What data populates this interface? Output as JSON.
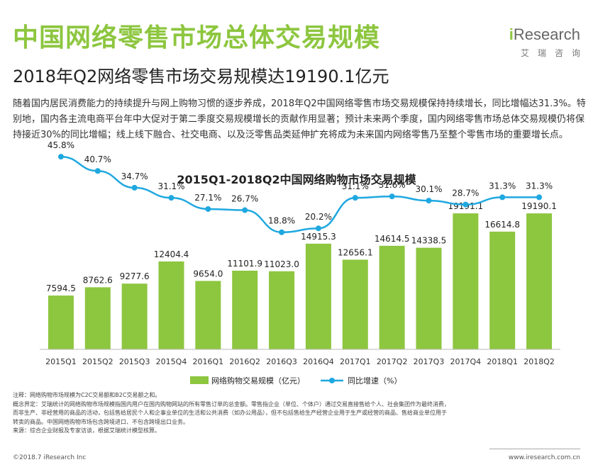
{
  "header": {
    "title": "中国网络零售市场总体交易规模",
    "subtitle": "2018年Q2网络零售市场交易规模达19190.1亿元",
    "brand_logo_i": "i",
    "brand_logo_rest": "Research",
    "brand_cn": "艾瑞咨询"
  },
  "summary": "随着国内居民消费能力的持续提升与网上购物习惯的逐步养成，2018年Q2中国网络零售市场交易规模保持持续增长，同比增幅达31.3%。特别地，国内各主流电商平台年中大促对于第二季度交易规模增长的贡献作用显著；预计未来两个季度，国内网络零售市场总体交易规模仍将保持接近30%的同比增幅；线上线下融合、社交电商、以及泛零售品类延伸扩充将成为未来国内网络零售乃至整个零售市场的重要增长点。",
  "chart_data": {
    "type": "bar",
    "title": "2015Q1-2018Q2中国网络购物市场交易规模",
    "categories": [
      "2015Q1",
      "2015Q2",
      "2015Q3",
      "2015Q4",
      "2016Q1",
      "2016Q2",
      "2016Q3",
      "2016Q4",
      "2017Q1",
      "2017Q2",
      "2017Q3",
      "2017Q4",
      "2018Q1",
      "2018Q2"
    ],
    "series": [
      {
        "name": "网络购物交易规模（亿元）",
        "type": "bar",
        "color": "#8DC63F",
        "values": [
          7594.5,
          8762.6,
          9277.6,
          12404.4,
          9654.0,
          11101.9,
          11023.0,
          14915.3,
          12656.1,
          14614.5,
          14338.5,
          19191.1,
          16614.8,
          19190.1
        ],
        "labels": [
          "7594.5",
          "8762.6",
          "9277.6",
          "12404.4",
          "9654.0",
          "11101.9",
          "11023.0",
          "14915.3",
          "12656.1",
          "14614.5",
          "14338.5",
          "19191.1",
          "16614.8",
          "19190.1"
        ]
      },
      {
        "name": "同比增速（%）",
        "type": "line",
        "color": "#1FA8E0",
        "values": [
          45.8,
          40.7,
          34.7,
          31.1,
          27.1,
          26.7,
          18.8,
          20.2,
          31.1,
          31.6,
          30.1,
          28.7,
          31.3,
          31.3
        ],
        "labels": [
          "45.8%",
          "40.7%",
          "34.7%",
          "31.1%",
          "27.1%",
          "26.7%",
          "18.8%",
          "20.2%",
          "31.1%",
          "31.6%",
          "30.1%",
          "28.7%",
          "31.3%",
          "31.3%"
        ]
      }
    ],
    "legend_position": "bottom",
    "grid": false
  },
  "notes": {
    "note": "注释：网络购物市场规模为C2C交易额和B2C交易额之和。",
    "definition_1": "概念界定：艾瑞统计的网络购物市场规模指国内用户在国内购物网站的所有零售订单的总金额。零售指企业（单位、个体户）通过交易直接售给个人、社会集团作为最终消费，",
    "definition_2": "而非生产、非经营用的商品的活动，包括售给居民个人和企事业单位的生活和公共消费（如办公用品），但不包括售给生产经营企业用于生产或经营的商品、售给商业单位用于",
    "definition_3": "转卖的商品。中国网络购物市场包含跨境进口、不包含跨境出口业务。",
    "source": "来源：综合企业财报及专家访谈，根据艾瑞统计模型核算。"
  },
  "footer": {
    "copyright": "©2018.7 iResearch Inc",
    "website": "www.iresearch.com.cn"
  }
}
